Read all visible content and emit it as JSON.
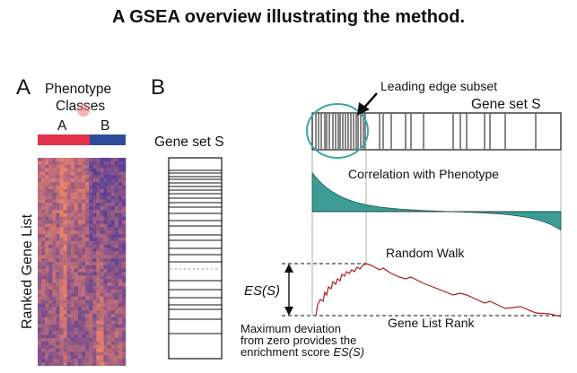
{
  "title": "A GSEA overview illustrating the method.",
  "panelA": {
    "letter": "A",
    "phenotype_line1": "Phenotype",
    "phenotype_line2": "Classes",
    "class_a": "A",
    "class_b": "B",
    "row_axis_label": "Ranked Gene List",
    "colors": {
      "class_a": "#e0324a",
      "class_b": "#2e4a9a",
      "low": "#5b3f96",
      "high": "#e8826a"
    }
  },
  "panelB": {
    "letter": "B",
    "gene_set_label_left": "Gene set S",
    "gene_set_label_top": "Gene set S",
    "leading_edge_label": "Leading edge subset",
    "correlation_label": "Correlation with Phenotype",
    "random_walk_label": "Random Walk",
    "gene_list_rank_label": "Gene List Rank",
    "es_label": "ES(S)",
    "caption_line1": "Maximum deviation",
    "caption_line2": "from zero provides the",
    "caption_line3_prefix": "enrichment score ",
    "caption_line3_italic": "ES(S)",
    "colors": {
      "teal": "#3a9c95",
      "walk": "#b01c1c",
      "circle": "#3aa6a8"
    }
  }
}
